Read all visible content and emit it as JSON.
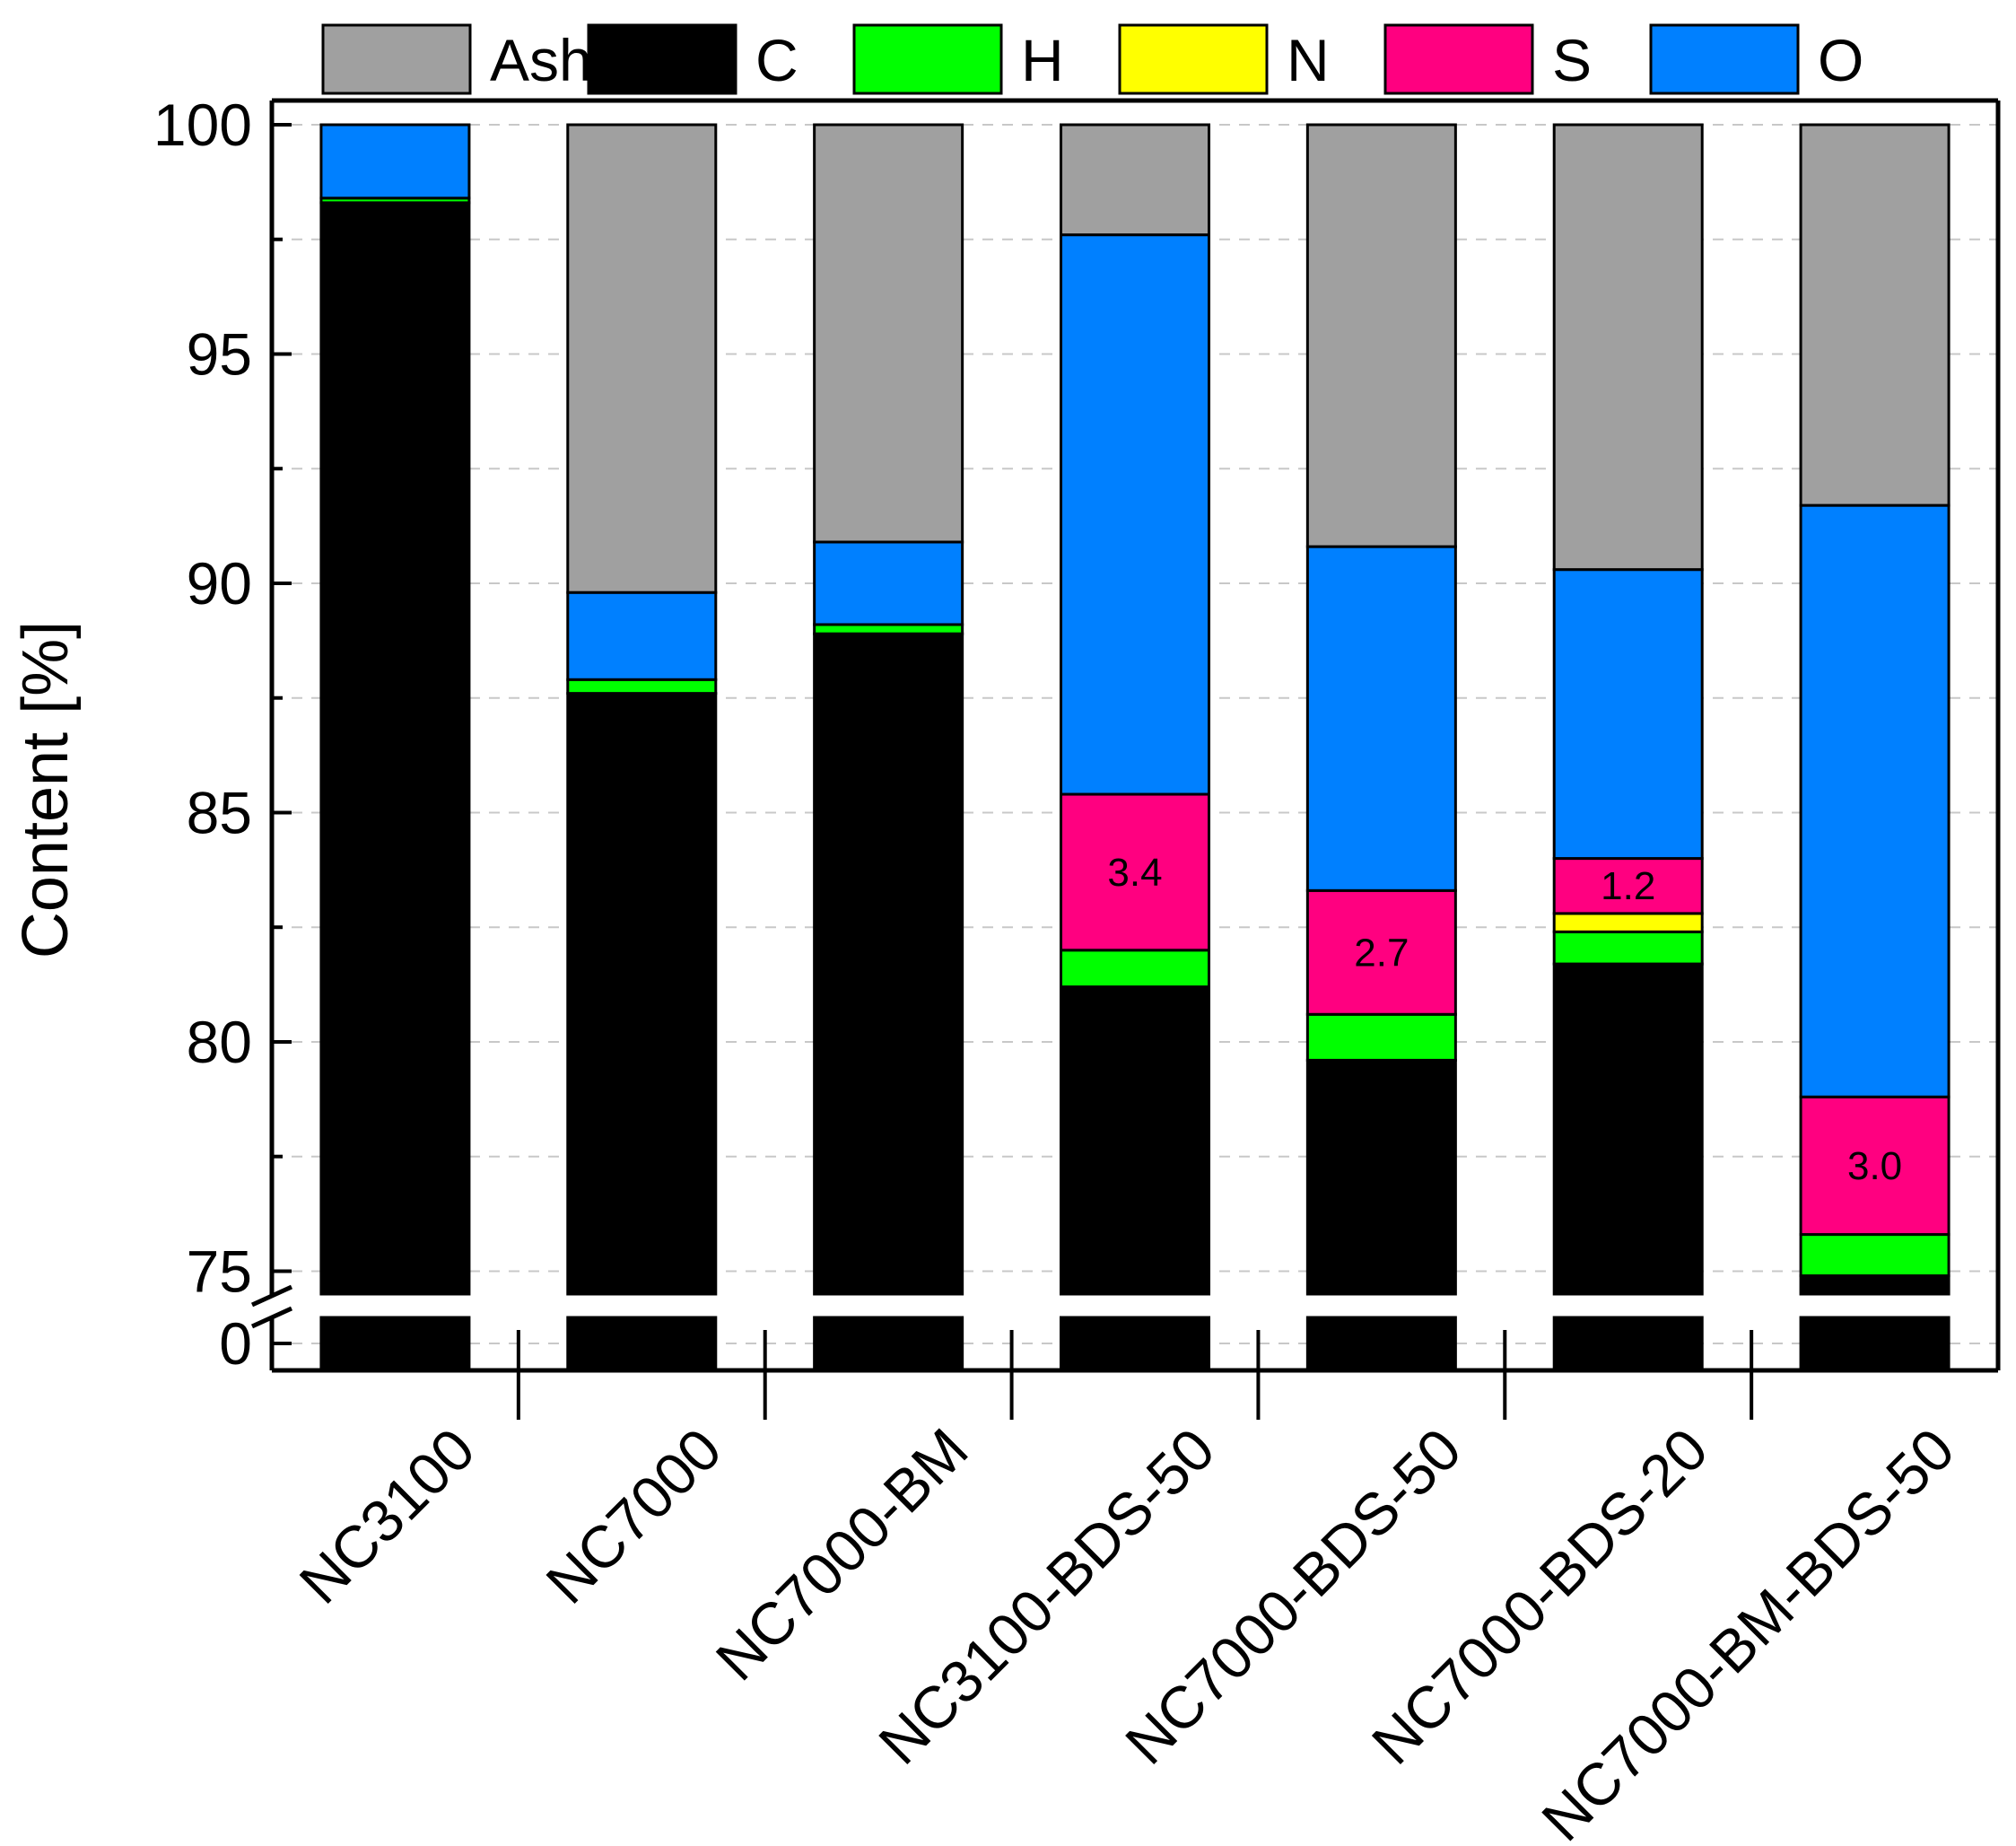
{
  "chart_data": {
    "type": "stacked-bar",
    "title": "",
    "xlabel": "",
    "ylabel": "Content [%]",
    "ylim_upper": [
      74.5,
      100
    ],
    "ylim_lower": [
      0,
      1
    ],
    "axis_break": true,
    "yticks_upper": [
      75,
      80,
      85,
      90,
      95,
      100
    ],
    "ytick_lower": [
      0
    ],
    "grid": "dashed horizontal",
    "legend_position": "top",
    "categories": [
      "NC3100",
      "NC7000",
      "NC7000-BM",
      "NC3100-BDS-50",
      "NC7000-BDS-50",
      "NC7000-BDS-20",
      "NC7000-BM-BDS-50"
    ],
    "series": [
      {
        "name": "C",
        "color": "#000000",
        "values": [
          98.3,
          87.6,
          88.9,
          81.2,
          79.6,
          81.7,
          74.9
        ]
      },
      {
        "name": "H",
        "color": "#00ff00",
        "values": [
          0.1,
          0.3,
          0.2,
          0.8,
          1.0,
          0.7,
          0.9
        ]
      },
      {
        "name": "N",
        "color": "#ffff00",
        "values": [
          0.0,
          0.0,
          0.0,
          0.0,
          0.0,
          0.4,
          0.0
        ]
      },
      {
        "name": "S",
        "color": "#ff0080",
        "values": [
          0.0,
          0.0,
          0.0,
          3.4,
          2.7,
          1.2,
          3.0
        ]
      },
      {
        "name": "O",
        "color": "#0080ff",
        "values": [
          1.6,
          1.9,
          1.8,
          12.2,
          7.5,
          6.3,
          12.9
        ]
      },
      {
        "name": "Ash",
        "color": "#a0a0a0",
        "values": [
          0.0,
          10.2,
          9.1,
          2.4,
          9.2,
          9.7,
          8.3
        ]
      }
    ],
    "legend_order": [
      "Ash",
      "C",
      "H",
      "N",
      "S",
      "O"
    ],
    "annotations": [
      {
        "category": "NC3100-BDS-50",
        "series": "S",
        "text": "3.4"
      },
      {
        "category": "NC7000-BDS-50",
        "series": "S",
        "text": "2.7"
      },
      {
        "category": "NC7000-BDS-20",
        "series": "S",
        "text": "1.2"
      },
      {
        "category": "NC7000-BM-BDS-50",
        "series": "S",
        "text": "3.0"
      }
    ]
  }
}
